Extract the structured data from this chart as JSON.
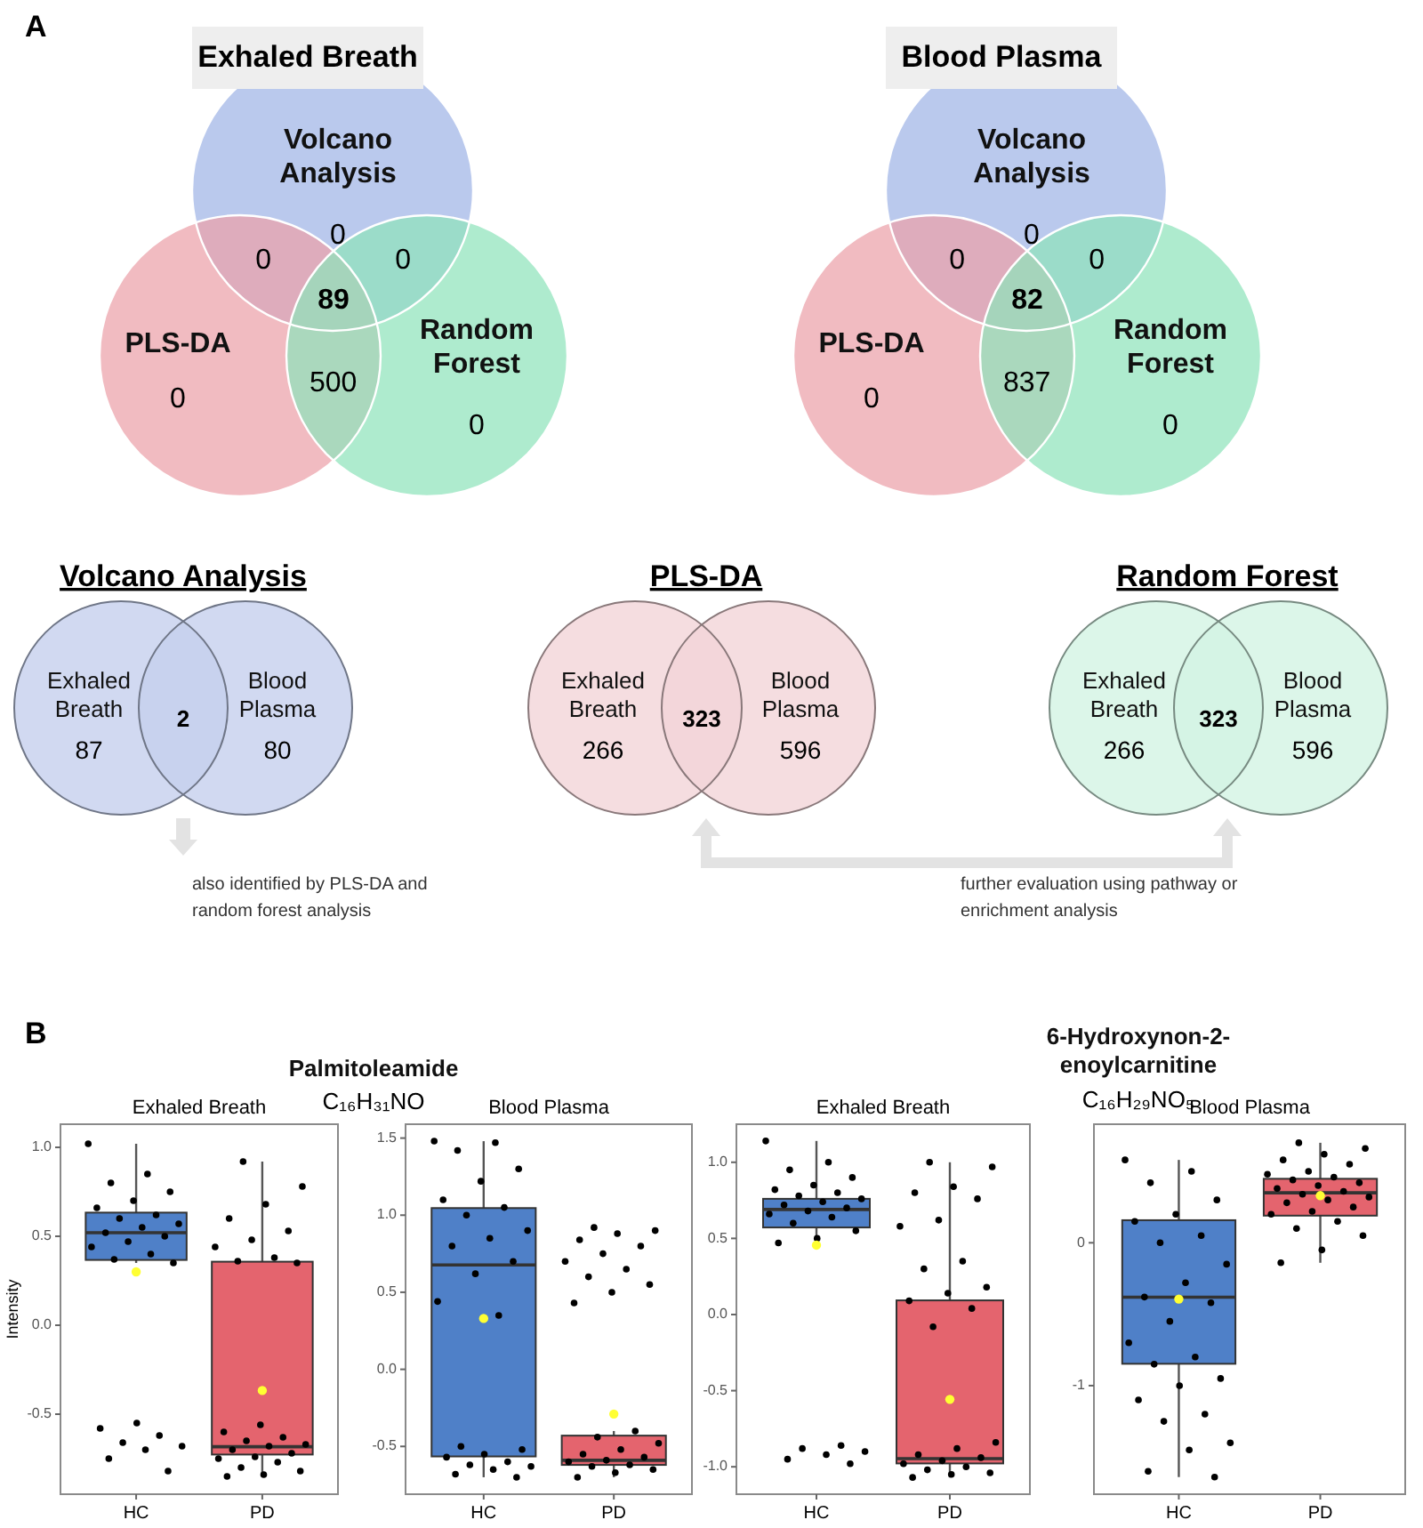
{
  "chart_data": [
    {
      "type": "other",
      "title": "Exhaled Breath",
      "categories": [
        "Volcano Analysis",
        "PLS-DA",
        "Random Forest"
      ],
      "colors": [
        "#9fb4e6",
        "#eca1a9",
        "#8fe3bb"
      ],
      "values": [
        0,
        0,
        0
      ],
      "data_labels": true,
      "annotations": [
        "A",
        "0",
        "0",
        "500",
        "89"
      ]
    },
    {
      "type": "other",
      "title": "Blood Plasma",
      "categories": [
        "Volcano Analysis",
        "PLS-DA",
        "Random Forest"
      ],
      "colors": [
        "#9fb4e6",
        "#eca1a9",
        "#8fe3bb"
      ],
      "values": [
        0,
        0,
        0
      ],
      "data_labels": true,
      "annotations": [
        "0",
        "0",
        "837",
        "82"
      ]
    },
    {
      "type": "other",
      "title": "Volcano Analysis",
      "categories": [
        "Exhaled Breath",
        "Blood Plasma"
      ],
      "colors": [
        "#c5d0ee",
        "#c5d0ee"
      ],
      "values": [
        87,
        80
      ],
      "data_labels": true,
      "annotations": [
        "2",
        "also identified by PLS-DA and random forest analysis"
      ]
    },
    {
      "type": "other",
      "title": "PLS-DA",
      "categories": [
        "Exhaled Breath",
        "Blood Plasma"
      ],
      "colors": [
        "#f2d4d8",
        "#f2d4d8"
      ],
      "values": [
        266,
        596
      ],
      "data_labels": true,
      "annotations": [
        "323",
        "further evaluation using pathway or enrichment analysis"
      ]
    },
    {
      "type": "other",
      "title": "Random Forest",
      "categories": [
        "Exhaled Breath",
        "Blood Plasma"
      ],
      "colors": [
        "#d3f4e4",
        "#d3f4e4"
      ],
      "values": [
        266,
        596
      ],
      "data_labels": true,
      "annotations": [
        "323"
      ]
    },
    {
      "type": "box",
      "title": "Exhaled Breath",
      "ylabel": "Intensity",
      "categories": [
        "HC",
        "PD"
      ],
      "colors": [
        "#4f80c8",
        "#e4646e"
      ],
      "ylim": [
        -0.95,
        1.13
      ],
      "yticks": [
        -0.5,
        {
          "value": 0,
          "label": "0.0"
        },
        0.5,
        {
          "value": 1,
          "label": "1.0"
        }
      ],
      "annotations": [
        "B",
        "Palmitoleamide",
        "C₁₆H₃₁NO"
      ],
      "boxes": [
        {
          "low": 0.35,
          "q1": 0.367,
          "median": 0.52,
          "q3": 0.633,
          "high": 1.02,
          "mean": 0.3
        },
        {
          "low": -0.85,
          "q1": -0.727,
          "median": -0.683,
          "q3": 0.357,
          "high": 0.92,
          "mean": -0.367
        }
      ],
      "series": [
        {
          "type": "scatter",
          "color": "#000000",
          "x": [
            "HC",
            "HC",
            "HC",
            "HC",
            "HC",
            "HC",
            "HC",
            "HC",
            "HC",
            "HC",
            "HC",
            "HC",
            "HC",
            "HC",
            "HC",
            "HC",
            "HC",
            "HC",
            "HC",
            "HC",
            "HC",
            "HC",
            "HC",
            "HC",
            "HC"
          ],
          "values": [
            1.02,
            0.85,
            0.8,
            0.75,
            0.7,
            0.66,
            0.62,
            0.6,
            0.57,
            0.55,
            0.52,
            0.5,
            0.47,
            0.44,
            0.4,
            0.37,
            0.35,
            -0.55,
            -0.58,
            -0.62,
            -0.66,
            -0.68,
            -0.7,
            -0.75,
            -0.82
          ]
        },
        {
          "type": "scatter",
          "color": "#000000",
          "x": [
            "PD",
            "PD",
            "PD",
            "PD",
            "PD",
            "PD",
            "PD",
            "PD",
            "PD",
            "PD",
            "PD",
            "PD",
            "PD",
            "PD",
            "PD",
            "PD",
            "PD",
            "PD",
            "PD",
            "PD",
            "PD",
            "PD",
            "PD",
            "PD",
            "PD"
          ],
          "values": [
            0.92,
            0.78,
            0.68,
            0.6,
            0.53,
            0.48,
            0.44,
            0.38,
            0.36,
            0.35,
            -0.56,
            -0.6,
            -0.63,
            -0.65,
            -0.67,
            -0.68,
            -0.7,
            -0.72,
            -0.74,
            -0.75,
            -0.77,
            -0.8,
            -0.82,
            -0.84,
            -0.85
          ]
        }
      ]
    },
    {
      "type": "box",
      "title": "Blood Plasma",
      "categories": [
        "HC",
        "PD"
      ],
      "colors": [
        "#4f80c8",
        "#e4646e"
      ],
      "ylim": [
        -0.81,
        1.59
      ],
      "yticks": [
        -0.5,
        {
          "value": 0,
          "label": "0.0"
        },
        0.5,
        {
          "value": 1,
          "label": "1.0"
        },
        1.5
      ],
      "boxes": [
        {
          "low": -0.7,
          "q1": -0.565,
          "median": 0.677,
          "q3": 1.046,
          "high": 1.48,
          "mean": 0.33
        },
        {
          "low": -0.7,
          "q1": -0.62,
          "median": -0.59,
          "q3": -0.43,
          "high": -0.4,
          "mean": -0.29
        }
      ],
      "series": [
        {
          "type": "scatter",
          "color": "#000000",
          "x": [
            "HC",
            "HC",
            "HC",
            "HC",
            "HC",
            "HC",
            "HC",
            "HC",
            "HC",
            "HC",
            "HC",
            "HC",
            "HC",
            "HC",
            "HC",
            "HC",
            "HC",
            "HC",
            "HC",
            "HC",
            "HC",
            "HC",
            "HC",
            "HC",
            "HC"
          ],
          "values": [
            1.48,
            1.47,
            1.42,
            1.3,
            1.22,
            1.1,
            1.05,
            1.0,
            0.9,
            0.85,
            0.8,
            0.7,
            0.62,
            0.44,
            0.35,
            -0.5,
            -0.52,
            -0.55,
            -0.57,
            -0.6,
            -0.62,
            -0.63,
            -0.65,
            -0.68,
            -0.7
          ]
        },
        {
          "type": "scatter",
          "color": "#000000",
          "x": [
            "PD",
            "PD",
            "PD",
            "PD",
            "PD",
            "PD",
            "PD",
            "PD",
            "PD",
            "PD",
            "PD",
            "PD",
            "PD",
            "PD",
            "PD",
            "PD",
            "PD",
            "PD",
            "PD",
            "PD",
            "PD",
            "PD",
            "PD",
            "PD",
            "PD"
          ],
          "values": [
            0.92,
            0.9,
            0.88,
            0.84,
            0.8,
            0.75,
            0.7,
            0.65,
            0.6,
            0.55,
            0.5,
            0.43,
            -0.4,
            -0.44,
            -0.48,
            -0.52,
            -0.55,
            -0.57,
            -0.59,
            -0.6,
            -0.62,
            -0.63,
            -0.65,
            -0.67,
            -0.7
          ]
        }
      ]
    },
    {
      "type": "box",
      "title": "Exhaled Breath",
      "categories": [
        "HC",
        "PD"
      ],
      "colors": [
        "#4f80c8",
        "#e4646e"
      ],
      "ylim": [
        -1.18,
        1.25
      ],
      "yticks": [
        {
          "value": -1,
          "label": "-1.0"
        },
        -0.5,
        {
          "value": 0,
          "label": "0.0"
        },
        0.5,
        {
          "value": 1,
          "label": "1.0"
        }
      ],
      "annotations": [
        "6-Hydroxynon-2-enoylcarnitine",
        "C₁₆H₂₉NO₅"
      ],
      "boxes": [
        {
          "low": 0.47,
          "q1": 0.572,
          "median": 0.69,
          "q3": 0.76,
          "high": 1.14,
          "mean": 0.456
        },
        {
          "low": -1.07,
          "q1": -0.978,
          "median": -0.946,
          "q3": 0.093,
          "high": 1.0,
          "mean": -0.557
        }
      ],
      "series": [
        {
          "type": "scatter",
          "color": "#000000",
          "x": [
            "HC",
            "HC",
            "HC",
            "HC",
            "HC",
            "HC",
            "HC",
            "HC",
            "HC",
            "HC",
            "HC",
            "HC",
            "HC",
            "HC",
            "HC",
            "HC",
            "HC",
            "HC",
            "HC",
            "HC",
            "HC",
            "HC",
            "HC",
            "HC",
            "HC"
          ],
          "values": [
            1.14,
            1.0,
            0.95,
            0.9,
            0.85,
            0.82,
            0.8,
            0.78,
            0.76,
            0.74,
            0.72,
            0.7,
            0.68,
            0.66,
            0.64,
            0.6,
            0.55,
            0.5,
            0.47,
            -0.86,
            -0.88,
            -0.9,
            -0.92,
            -0.95,
            -0.98
          ]
        },
        {
          "type": "scatter",
          "color": "#000000",
          "x": [
            "PD",
            "PD",
            "PD",
            "PD",
            "PD",
            "PD",
            "PD",
            "PD",
            "PD",
            "PD",
            "PD",
            "PD",
            "PD",
            "PD",
            "PD",
            "PD",
            "PD",
            "PD",
            "PD",
            "PD",
            "PD",
            "PD",
            "PD",
            "PD",
            "PD"
          ],
          "values": [
            1.0,
            0.97,
            0.84,
            0.8,
            0.76,
            0.62,
            0.58,
            0.35,
            0.3,
            0.18,
            0.14,
            0.09,
            0.04,
            -0.08,
            -0.84,
            -0.88,
            -0.92,
            -0.94,
            -0.96,
            -0.98,
            -1.0,
            -1.02,
            -1.04,
            -1.05,
            -1.07
          ]
        }
      ]
    },
    {
      "type": "box",
      "title": "Blood Plasma",
      "categories": [
        "HC",
        "PD"
      ],
      "colors": [
        "#4f80c8",
        "#e4646e"
      ],
      "ylim": [
        -1.76,
        0.83
      ],
      "yticks": [
        -1,
        0
      ],
      "boxes": [
        {
          "low": -1.64,
          "q1": -0.847,
          "median": -0.381,
          "q3": 0.158,
          "high": 0.58,
          "mean": -0.394
        },
        {
          "low": -0.14,
          "q1": 0.19,
          "median": 0.35,
          "q3": 0.448,
          "high": 0.7,
          "mean": 0.33
        }
      ],
      "series": [
        {
          "type": "scatter",
          "color": "#000000",
          "x": [
            "HC",
            "HC",
            "HC",
            "HC",
            "HC",
            "HC",
            "HC",
            "HC",
            "HC",
            "HC",
            "HC",
            "HC",
            "HC",
            "HC",
            "HC",
            "HC",
            "HC",
            "HC",
            "HC",
            "HC",
            "HC",
            "HC",
            "HC",
            "HC",
            "HC"
          ],
          "values": [
            0.58,
            0.5,
            0.42,
            0.3,
            0.2,
            0.15,
            0.05,
            0.0,
            -0.15,
            -0.28,
            -0.38,
            -0.42,
            -0.55,
            -0.7,
            -0.8,
            -0.85,
            -0.95,
            -1.0,
            -1.1,
            -1.2,
            -1.25,
            -1.4,
            -1.45,
            -1.6,
            -1.64
          ]
        },
        {
          "type": "scatter",
          "color": "#000000",
          "x": [
            "PD",
            "PD",
            "PD",
            "PD",
            "PD",
            "PD",
            "PD",
            "PD",
            "PD",
            "PD",
            "PD",
            "PD",
            "PD",
            "PD",
            "PD",
            "PD",
            "PD",
            "PD",
            "PD",
            "PD",
            "PD",
            "PD",
            "PD",
            "PD",
            "PD"
          ],
          "values": [
            0.7,
            0.66,
            0.62,
            0.58,
            0.55,
            0.5,
            0.48,
            0.46,
            0.44,
            0.42,
            0.4,
            0.38,
            0.36,
            0.34,
            0.32,
            0.3,
            0.28,
            0.25,
            0.22,
            0.2,
            0.15,
            0.1,
            0.05,
            -0.05,
            -0.14
          ]
        }
      ]
    }
  ]
}
